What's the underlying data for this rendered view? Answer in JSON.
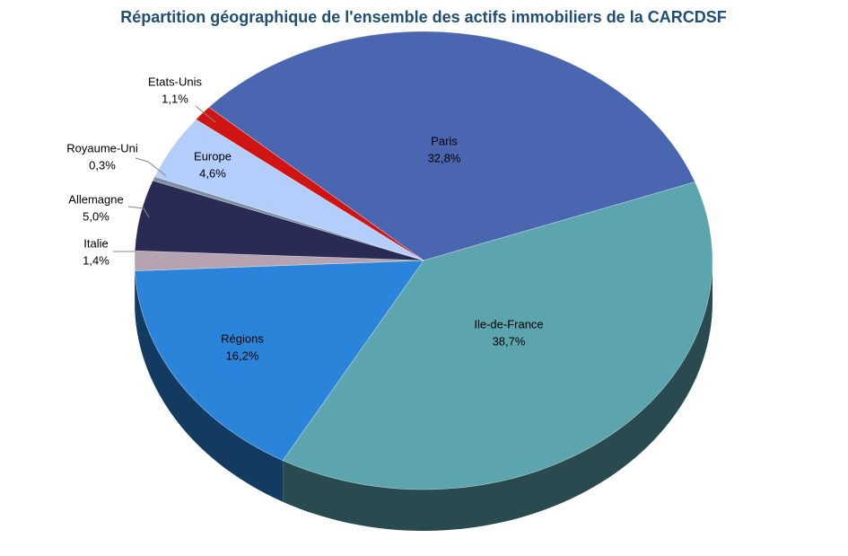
{
  "chart_data": {
    "type": "pie",
    "title": "Répartition géographique de l'ensemble des actifs immobiliers de la CARCDSF",
    "categories": [
      "Paris",
      "Ile-de-France",
      "Régions",
      "Italie",
      "Allemagne",
      "Royaume-Uni",
      "Europe",
      "Etats-Unis"
    ],
    "values": [
      32.8,
      38.7,
      16.2,
      1.4,
      5.0,
      0.3,
      4.6,
      1.1
    ],
    "value_labels": [
      "32,8%",
      "38,7%",
      "16,2%",
      "1,4%",
      "5,0%",
      "0,3%",
      "4,6%",
      "1,1%"
    ],
    "colors": [
      "#4a66b0",
      "#5ca4ae",
      "#2a84d9",
      "#b5a3b2",
      "#2a2b55",
      "#7d90a3",
      "#b4cefc",
      "#d01414"
    ]
  }
}
